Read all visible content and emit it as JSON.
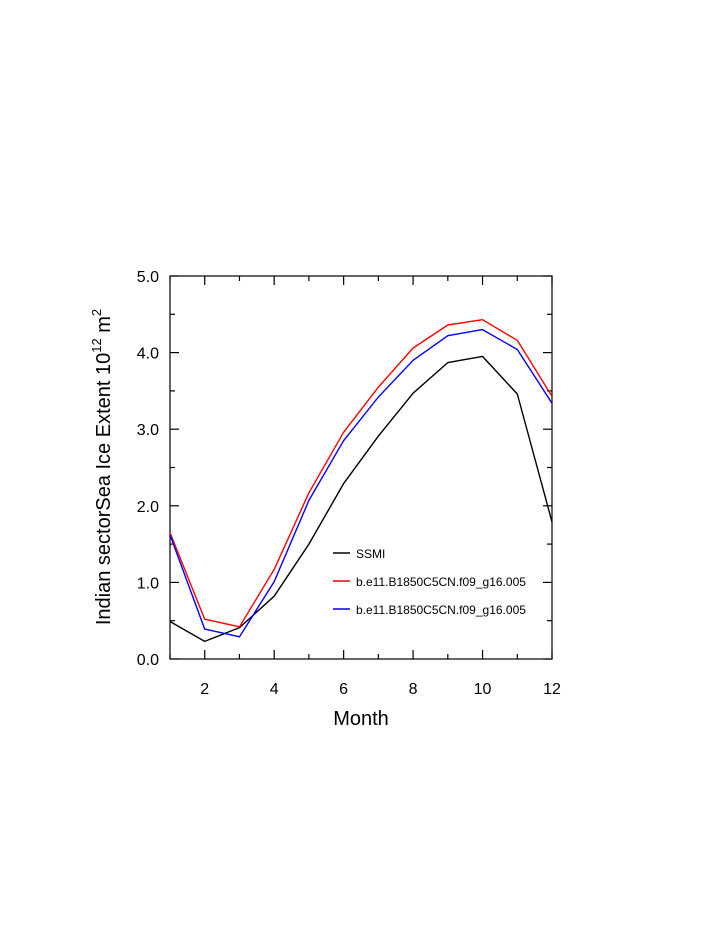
{
  "chart_data": {
    "type": "line",
    "title": "",
    "xlabel": "Month",
    "ylabel": {
      "main": "Indian sectorSea Ice Extent 10",
      "superscript": "12",
      "unit": " m",
      "unit_superscript": "2"
    },
    "xlim": [
      1,
      12
    ],
    "ylim": [
      0.0,
      5.0
    ],
    "x_ticks": [
      2,
      4,
      6,
      8,
      10,
      12
    ],
    "y_ticks": [
      "0.0",
      "1.0",
      "2.0",
      "3.0",
      "4.0",
      "5.0"
    ],
    "grid": false,
    "legend_position": "lower-right",
    "x": [
      1,
      2,
      3,
      4,
      5,
      6,
      7,
      8,
      9,
      10,
      11,
      12
    ],
    "series": [
      {
        "name": "SSMI",
        "color": "#000000",
        "values": [
          0.49,
          0.23,
          0.41,
          0.82,
          1.5,
          2.29,
          2.91,
          3.47,
          3.87,
          3.95,
          3.46,
          1.79
        ]
      },
      {
        "name": "b.e11.B1850C5CN.f09_g16.005",
        "color": "#ff0000",
        "values": [
          1.65,
          0.52,
          0.42,
          1.17,
          2.17,
          2.96,
          3.55,
          4.06,
          4.36,
          4.43,
          4.16,
          3.43
        ]
      },
      {
        "name": "b.e11.B1850C5CN.f09_g16.005",
        "color": "#0000ff",
        "values": [
          1.62,
          0.39,
          0.29,
          1.01,
          2.07,
          2.85,
          3.42,
          3.9,
          4.22,
          4.3,
          4.04,
          3.34
        ]
      }
    ]
  }
}
